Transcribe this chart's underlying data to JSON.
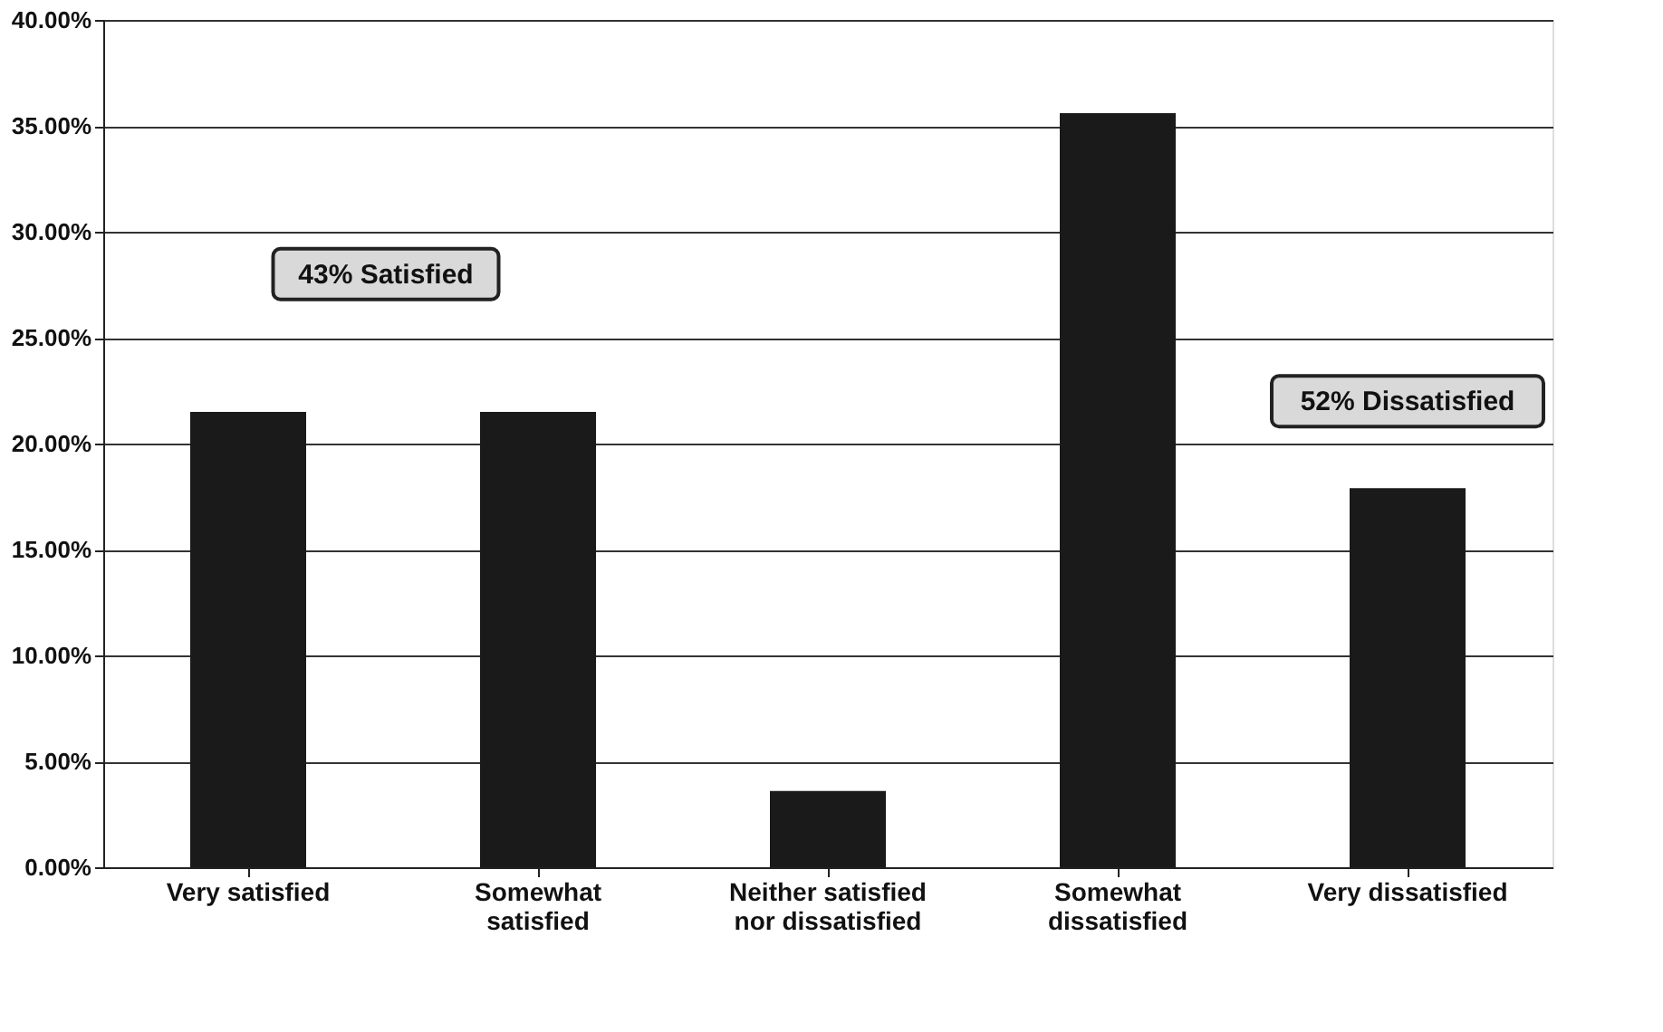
{
  "chart_data": {
    "type": "bar",
    "categories": [
      "Very satisfied",
      "Somewhat satisfied",
      "Neither satisfied nor dissatisfied",
      "Somewhat dissatisfied",
      "Very dissatisfied"
    ],
    "values": [
      21.5,
      21.5,
      3.6,
      35.6,
      17.9
    ],
    "color": "#1a1a1a",
    "ylim": [
      0,
      40
    ],
    "yticks": [
      {
        "value": 0,
        "label": "0.00%"
      },
      {
        "value": 5,
        "label": "5.00%"
      },
      {
        "value": 10,
        "label": "10.00%"
      },
      {
        "value": 15,
        "label": "15.00%"
      },
      {
        "value": 20,
        "label": "20.00%"
      },
      {
        "value": 25,
        "label": "25.00%"
      },
      {
        "value": 30,
        "label": "30.00%"
      },
      {
        "value": 35,
        "label": "35.00%"
      },
      {
        "value": 40,
        "label": "40.00%"
      }
    ],
    "grid": "y",
    "annotations": [
      "43% Satisfied",
      "52% Dissatisfied"
    ]
  }
}
